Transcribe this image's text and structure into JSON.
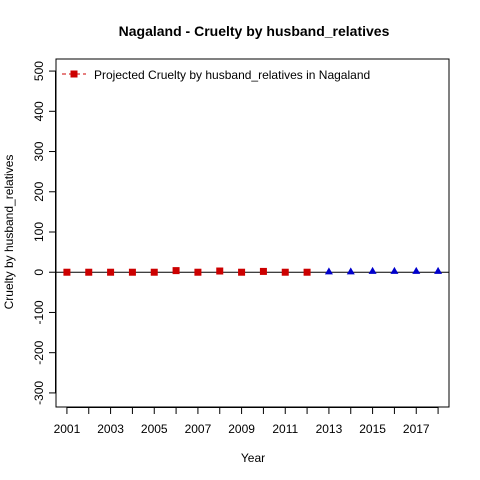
{
  "chart_data": {
    "type": "scatter",
    "title": "Nagaland  -  Cruelty by husband_relatives",
    "xlabel": "Year",
    "ylabel": "Cruelty by husband_relatives",
    "xlim": [
      2000.5,
      2018.5
    ],
    "ylim": [
      -335,
      530
    ],
    "xticks": [
      2001,
      2002,
      2003,
      2004,
      2005,
      2006,
      2007,
      2008,
      2009,
      2010,
      2011,
      2012,
      2013,
      2014,
      2015,
      2016,
      2017,
      2018
    ],
    "xtick_labels": [
      "2001",
      "",
      "2003",
      "",
      "2005",
      "",
      "2007",
      "",
      "2009",
      "",
      "2011",
      "",
      "2013",
      "",
      "2015",
      "",
      "2017",
      ""
    ],
    "yticks": [
      -300,
      -200,
      -100,
      0,
      100,
      200,
      300,
      400,
      500
    ],
    "ytick_labels": [
      "-300",
      "-200",
      "-100",
      "0",
      "100",
      "200",
      "300",
      "400",
      "500"
    ],
    "hline": 0,
    "grid": false,
    "legend": {
      "position": "top-left",
      "entries": [
        "Projected  Cruelty by husband_relatives  in  Nagaland"
      ]
    },
    "series": [
      {
        "name": "Projected  Cruelty by husband_relatives  in  Nagaland",
        "marker": "square",
        "color": "#cc0000",
        "x": [
          2001,
          2002,
          2003,
          2004,
          2005,
          2006,
          2007,
          2008,
          2009,
          2010,
          2011,
          2012
        ],
        "y": [
          0,
          0,
          0,
          0,
          0,
          4,
          0,
          3,
          0,
          2,
          0,
          0
        ]
      },
      {
        "marker": "triangle",
        "color": "#0000cc",
        "x": [
          2013,
          2014,
          2015,
          2016,
          2017,
          2018
        ],
        "y": [
          1,
          1,
          2,
          2,
          2,
          2
        ]
      }
    ]
  }
}
